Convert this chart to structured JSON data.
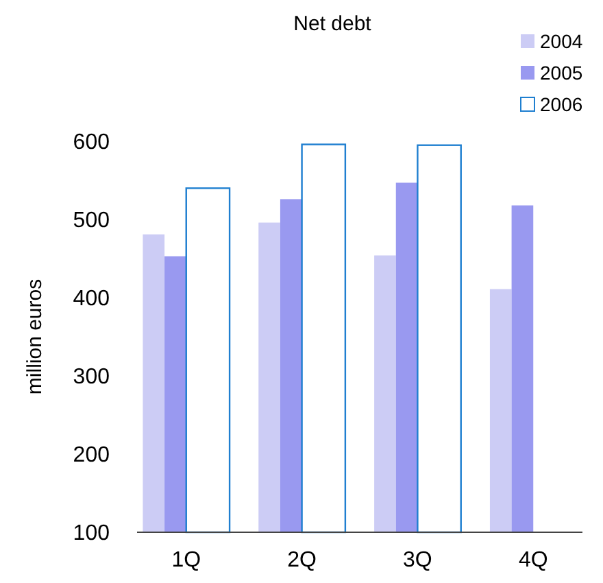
{
  "chart_data": {
    "type": "bar",
    "title": "Net debt",
    "ylabel": "million euros",
    "categories": [
      "1Q",
      "2Q",
      "3Q",
      "4Q"
    ],
    "series": [
      {
        "name": "2004",
        "color": "#ccccf5",
        "values": [
          481,
          496,
          454,
          411
        ]
      },
      {
        "name": "2005",
        "color": "#9999f0",
        "values": [
          453,
          526,
          547,
          518
        ]
      },
      {
        "name": "2006",
        "color": "#1f7fd0",
        "values": [
          540,
          596,
          595,
          null
        ]
      }
    ],
    "ylim": [
      100,
      600
    ],
    "yticks": [
      100,
      200,
      300,
      400,
      500,
      600
    ],
    "legend": "top right",
    "grid": false
  }
}
